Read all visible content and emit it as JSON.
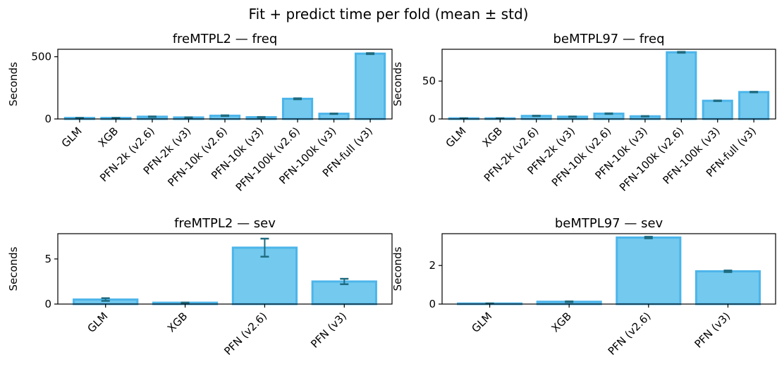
{
  "figure": {
    "title": "Fit + predict time per fold (mean ± std)"
  },
  "colors": {
    "bar_fill": "#73c9ee",
    "bar_edge": "#4cb5ea",
    "error": "#1f6b80",
    "axis": "#000000"
  },
  "chart_data": [
    {
      "type": "bar",
      "title": "freMTPL2 — freq",
      "ylabel": "Seconds",
      "xlabel": "",
      "ylim": [
        0,
        560
      ],
      "yticks": [
        0,
        500
      ],
      "categories": [
        "GLM",
        "XGB",
        "PFN-2k (v2.6)",
        "PFN-2k (v3)",
        "PFN-10k (v2.6)",
        "PFN-10k (v3)",
        "PFN-100k (v2.6)",
        "PFN-100k (v3)",
        "PFN-full (v3)"
      ],
      "values": [
        8,
        8,
        18,
        12,
        26,
        14,
        162,
        42,
        525
      ],
      "errors": [
        1,
        1,
        2,
        1,
        3,
        2,
        4,
        2,
        4
      ],
      "grid": false,
      "legend": "none"
    },
    {
      "type": "bar",
      "title": "beMTPL97 — freq",
      "ylabel": "Seconds",
      "xlabel": "",
      "ylim": [
        0,
        92
      ],
      "yticks": [
        0,
        50
      ],
      "categories": [
        "GLM",
        "XGB",
        "PFN-2k (v2.6)",
        "PFN-2k (v3)",
        "PFN-10k (v2.6)",
        "PFN-10k (v3)",
        "PFN-100k (v2.6)",
        "PFN-100k (v3)",
        "PFN-full (v3)"
      ],
      "values": [
        0.8,
        0.8,
        4,
        3,
        7,
        3.5,
        88,
        24,
        35.5
      ],
      "errors": [
        0.1,
        0.1,
        0.3,
        0.2,
        0.4,
        0.3,
        0.6,
        0.4,
        0.4
      ],
      "grid": false,
      "legend": "none"
    },
    {
      "type": "bar",
      "title": "freMTPL2 — sev",
      "ylabel": "Seconds",
      "xlabel": "",
      "ylim": [
        0,
        7.8
      ],
      "yticks": [
        0,
        5
      ],
      "categories": [
        "GLM",
        "XGB",
        "PFN (v2.6)",
        "PFN (v3)"
      ],
      "values": [
        0.5,
        0.15,
        6.25,
        2.5
      ],
      "errors": [
        0.15,
        0.02,
        1.0,
        0.3
      ],
      "grid": false,
      "legend": "none"
    },
    {
      "type": "bar",
      "title": "beMTPL97 — sev",
      "ylabel": "Seconds",
      "xlabel": "",
      "ylim": [
        0,
        3.65
      ],
      "yticks": [
        0,
        2
      ],
      "categories": [
        "GLM",
        "XGB",
        "PFN (v2.6)",
        "PFN (v3)"
      ],
      "values": [
        0.03,
        0.12,
        3.45,
        1.7
      ],
      "errors": [
        0.005,
        0.02,
        0.04,
        0.04
      ],
      "grid": false,
      "legend": "none"
    }
  ]
}
